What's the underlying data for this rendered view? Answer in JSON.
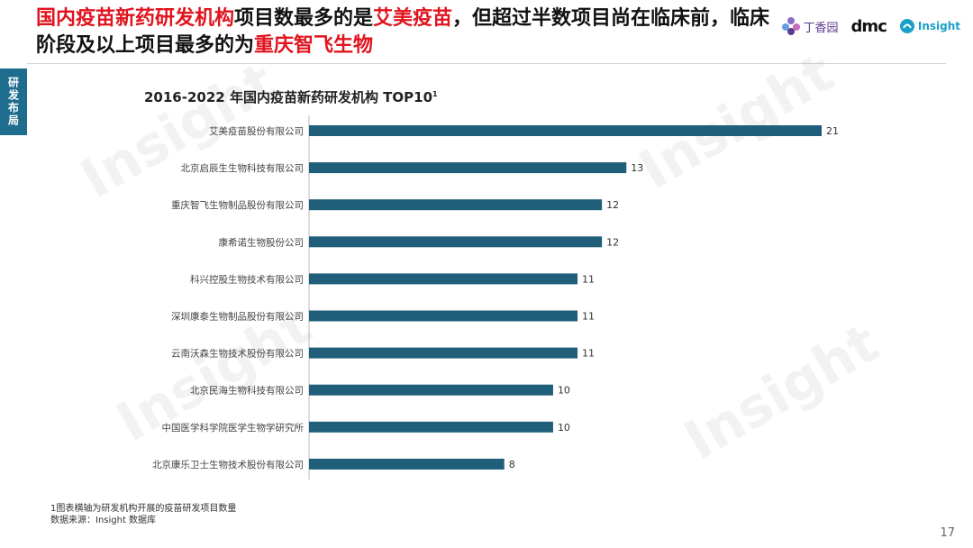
{
  "headline": {
    "part1": "国内疫苗新药研发机构",
    "part2": "项目数最多的是",
    "part3": "艾美疫苗",
    "part4": "，但超过半数项目尚在临床前，临床阶段及以上项目最多的为",
    "part5": "重庆智飞生物"
  },
  "logos": {
    "dxy": "丁香园",
    "dmc": "dmc",
    "insight": "Insight"
  },
  "side_tab": "研发布局",
  "watermark": "Insight",
  "chart_data": {
    "type": "bar",
    "orientation": "horizontal",
    "title": "2016-2022 年国内疫苗新药研发机构 TOP10",
    "title_sup": "1",
    "categories": [
      "艾美疫苗股份有限公司",
      "北京启辰生生物科技有限公司",
      "重庆智飞生物制品股份有限公司",
      "康希诺生物股份公司",
      "科兴控股生物技术有限公司",
      "深圳康泰生物制品股份有限公司",
      "云南沃森生物技术股份有限公司",
      "北京民海生物科技有限公司",
      "中国医学科学院医学生物学研究所",
      "北京康乐卫士生物技术股份有限公司"
    ],
    "values": [
      21,
      13,
      12,
      12,
      11,
      11,
      11,
      10,
      10,
      8
    ],
    "bar_color": "#1f5f7a",
    "xlim": [
      0,
      21
    ]
  },
  "footnote": {
    "line1": "1图表横轴为研发机构开展的疫苗研发项目数量",
    "line2": "数据来源：Insight 数据库"
  },
  "page_number": "17"
}
